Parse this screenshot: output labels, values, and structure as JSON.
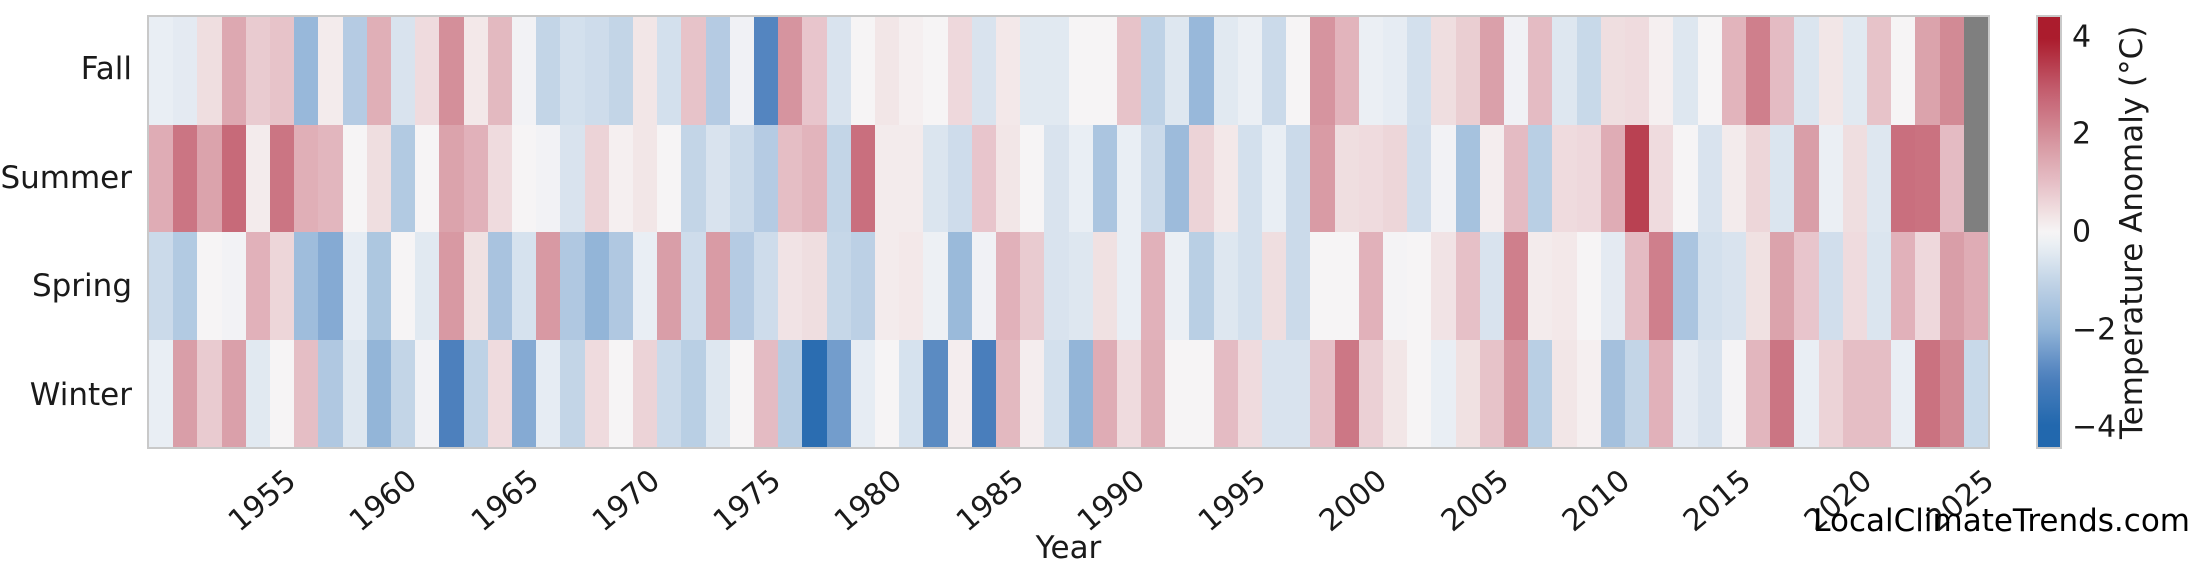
{
  "labels": {
    "xlabel": "Year",
    "watermark": "LocalClimateTrends.com"
  },
  "colorbar": {
    "label": "Temperature Anomaly (°C)",
    "ticks": [
      4,
      2,
      0,
      -2,
      -4
    ],
    "tick_labels": [
      "4",
      "2",
      "0",
      "−2",
      "−4"
    ],
    "vmin": -4.45,
    "vmax": 4.45,
    "missing_color": "#7f7f7f",
    "colormap_stops": [
      [
        -4.0,
        "#2268ae"
      ],
      [
        -3.0,
        "#4d80bd"
      ],
      [
        -2.0,
        "#93b5d8"
      ],
      [
        -1.0,
        "#c3d5e7"
      ],
      [
        -0.3,
        "#e9eef4"
      ],
      [
        0.0,
        "#f6f4f5"
      ],
      [
        0.3,
        "#f2e6e7"
      ],
      [
        1.0,
        "#e6c0c7"
      ],
      [
        2.0,
        "#d48f9a"
      ],
      [
        3.0,
        "#c25a6b"
      ],
      [
        4.0,
        "#ab1c2d"
      ]
    ]
  },
  "chart_data": {
    "type": "heatmap",
    "title": "",
    "xlabel": "Year",
    "ylabel": "",
    "x_start": 1950,
    "x_end": 2025,
    "xticks": [
      1955,
      1960,
      1965,
      1970,
      1975,
      1980,
      1985,
      1990,
      1995,
      2000,
      2005,
      2010,
      2015,
      2020,
      2025
    ],
    "rows": [
      "Fall",
      "Summer",
      "Spring",
      "Winter"
    ],
    "value_units": "°C anomaly",
    "series": [
      {
        "name": "Fall",
        "values": [
          -0.3,
          -0.4,
          0.45,
          1.5,
          0.8,
          0.95,
          -1.9,
          0.2,
          -1.3,
          1.35,
          -0.6,
          0.5,
          2.0,
          0.25,
          1.15,
          -0.1,
          -1.0,
          -0.7,
          -0.8,
          -1.0,
          0.3,
          -0.7,
          0.95,
          -1.3,
          -0.15,
          -2.9,
          1.9,
          0.9,
          -0.6,
          0.0,
          0.3,
          0.1,
          0.0,
          0.55,
          -0.6,
          0.25,
          -0.45,
          -0.45,
          0.0,
          0.0,
          0.95,
          -1.1,
          -0.5,
          -1.9,
          -0.45,
          -0.25,
          -0.85,
          0.0,
          1.9,
          1.25,
          -0.25,
          -0.35,
          -0.7,
          0.45,
          0.75,
          1.65,
          -0.15,
          1.1,
          -0.5,
          -0.9,
          0.45,
          0.5,
          0.1,
          -0.5,
          0.0,
          1.25,
          2.3,
          1.1,
          -0.55,
          0.3,
          -0.45,
          0.95,
          0.0,
          1.6,
          2.1,
          null
        ]
      },
      {
        "name": "Summer",
        "values": [
          1.4,
          2.5,
          1.6,
          2.7,
          0.2,
          2.5,
          1.35,
          1.2,
          0.0,
          0.45,
          -1.35,
          0.0,
          1.6,
          1.3,
          0.5,
          0.0,
          -0.1,
          -0.6,
          0.65,
          0.1,
          0.3,
          0.0,
          -1.0,
          -0.6,
          -0.85,
          -1.3,
          1.05,
          1.25,
          -1.0,
          2.6,
          0.2,
          0.2,
          -0.55,
          -0.8,
          0.9,
          0.3,
          0.0,
          -0.6,
          -0.3,
          -1.5,
          -0.3,
          -0.85,
          -1.8,
          0.65,
          0.25,
          -0.7,
          -0.3,
          -0.85,
          1.75,
          0.45,
          0.5,
          0.6,
          -0.75,
          -0.1,
          -1.6,
          0.15,
          1.1,
          -1.2,
          0.5,
          0.55,
          1.4,
          3.4,
          0.5,
          0.0,
          -0.6,
          0.2,
          0.6,
          -0.55,
          1.7,
          -0.25,
          0.45,
          -0.5,
          2.6,
          2.55,
          1.1,
          null
        ]
      },
      {
        "name": "Spring",
        "values": [
          -0.85,
          -1.35,
          0.0,
          -0.1,
          1.3,
          0.6,
          -1.75,
          -2.2,
          -0.35,
          -1.45,
          0.0,
          -0.45,
          1.8,
          0.4,
          -1.55,
          -0.65,
          1.8,
          -1.4,
          -2.0,
          -1.4,
          -0.3,
          1.7,
          -0.8,
          1.75,
          -1.3,
          -0.8,
          0.35,
          0.45,
          -0.95,
          -1.15,
          0.2,
          0.25,
          -0.2,
          -1.85,
          -0.15,
          1.3,
          0.8,
          -0.6,
          -0.5,
          0.4,
          -0.3,
          1.3,
          -0.25,
          -1.2,
          -0.5,
          -0.7,
          0.45,
          -0.85,
          0.0,
          0.0,
          1.3,
          -0.05,
          0.0,
          0.35,
          1.0,
          -0.6,
          2.3,
          0.2,
          0.25,
          0.0,
          -0.4,
          1.1,
          2.3,
          -1.5,
          -0.7,
          -0.6,
          0.4,
          1.6,
          0.9,
          -0.75,
          0.5,
          -0.55,
          1.3,
          0.55,
          1.7,
          1.4
        ]
      },
      {
        "name": "Winter",
        "values": [
          -0.3,
          1.7,
          0.8,
          1.65,
          -0.45,
          0.0,
          1.05,
          -1.4,
          -0.5,
          -2.0,
          -1.0,
          -0.1,
          -3.0,
          -1.1,
          0.5,
          -2.2,
          -0.35,
          -1.0,
          0.5,
          0.0,
          0.65,
          -0.85,
          -1.2,
          -0.5,
          0.0,
          1.1,
          -1.25,
          -3.8,
          -2.45,
          -0.35,
          0.0,
          -0.65,
          -2.8,
          0.15,
          -3.1,
          1.15,
          0.15,
          -0.7,
          -2.0,
          1.4,
          0.5,
          1.35,
          0.0,
          0.0,
          1.1,
          0.5,
          -0.6,
          -0.6,
          1.0,
          2.45,
          0.7,
          0.3,
          0.0,
          -0.3,
          0.4,
          0.95,
          1.9,
          -1.2,
          0.3,
          0.1,
          -1.65,
          -1.0,
          1.3,
          -0.4,
          -0.6,
          -0.05,
          1.2,
          2.5,
          -0.3,
          0.65,
          1.05,
          1.05,
          -0.3,
          2.55,
          2.1,
          -0.9
        ]
      }
    ]
  }
}
